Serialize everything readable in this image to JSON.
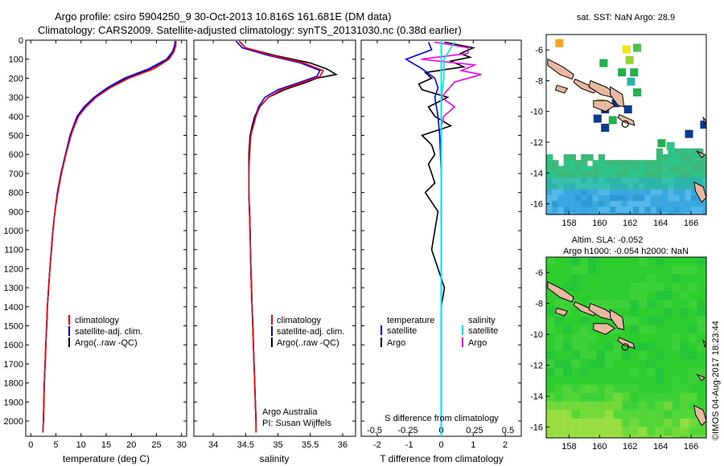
{
  "header": {
    "line1": "Argo profile: csiro 5904250_9 30-Oct-2013 10.816S 161.681E (DM data)",
    "line2": "Climatology: CARS2009. Satellite-adjusted climatology: synTS_20131030.nc (0.38d earlier)"
  },
  "colors": {
    "climatology": "#ff0000",
    "satellite": "#0000ff",
    "argo": "#000000",
    "salinity_satellite": "#00e5ee",
    "salinity_argo": "#ee00ee"
  },
  "legend": {
    "climatology": "climatology",
    "satellite_adj": "satellite-adj. clim.",
    "argo": "Argo(..raw -QC)",
    "temperature": "temperature",
    "salinity": "salinity",
    "satellite": "satellite",
    "argo_short": "Argo"
  },
  "credit": {
    "org": "Argo Australia",
    "pi": "PI: Susan Wijffels",
    "stamp": "©IMOS 04-Aug-2017 18:23:44"
  },
  "chart_data": [
    {
      "type": "line",
      "name": "temperature-profile",
      "xlabel": "temperature (deg C)",
      "ylabel": "",
      "xlim": [
        -1,
        31
      ],
      "ylim": [
        2080,
        0
      ],
      "xticks": [
        "0",
        "5",
        "10",
        "15",
        "20",
        "25",
        "30"
      ],
      "yticks": [
        "0",
        "100",
        "200",
        "300",
        "400",
        "500",
        "600",
        "700",
        "800",
        "900",
        "1000",
        "1100",
        "1200",
        "1300",
        "1400",
        "1500",
        "1600",
        "1700",
        "1800",
        "1900",
        "2000"
      ],
      "series": [
        {
          "name": "climatology",
          "depth": [
            5,
            30,
            60,
            100,
            150,
            200,
            250,
            300,
            350,
            400,
            450,
            500,
            600,
            700,
            800,
            900,
            1000,
            1200,
            1400,
            1600,
            1800,
            2000,
            2060
          ],
          "values": [
            28.9,
            28.8,
            28.5,
            27.5,
            24.5,
            19.5,
            15.8,
            13.0,
            11.0,
            9.5,
            8.7,
            8.0,
            7.0,
            6.1,
            5.4,
            4.8,
            4.4,
            3.8,
            3.3,
            3.0,
            2.7,
            2.5,
            2.4
          ]
        },
        {
          "name": "satellite-adj. clim.",
          "depth": [
            5,
            30,
            60,
            100,
            150,
            200,
            250,
            300,
            350,
            400,
            450,
            500,
            600,
            700,
            800,
            900,
            1000,
            1200,
            1400,
            1600,
            1800,
            2000,
            2060
          ],
          "values": [
            28.7,
            28.6,
            28.2,
            27.0,
            23.5,
            18.6,
            15.2,
            12.6,
            10.6,
            9.2,
            8.5,
            7.8,
            6.9,
            6.0,
            5.3,
            4.8,
            4.4,
            3.8,
            3.3,
            3.0,
            2.7,
            2.5,
            2.4
          ]
        },
        {
          "name": "Argo(..raw -QC)",
          "depth": [
            5,
            30,
            60,
            100,
            150,
            200,
            250,
            300,
            350,
            400,
            450,
            500,
            600,
            700,
            800,
            900,
            1000,
            1200,
            1400,
            1600,
            1800,
            2000
          ],
          "values": [
            28.8,
            28.7,
            28.4,
            27.2,
            23.8,
            18.9,
            15.4,
            12.8,
            10.8,
            9.3,
            8.6,
            7.9,
            6.9,
            6.0,
            5.3,
            4.8,
            4.4,
            3.8,
            3.3,
            3.0,
            2.7,
            2.5
          ]
        }
      ]
    },
    {
      "type": "line",
      "name": "salinity-profile",
      "xlabel": "salinity",
      "xlim": [
        33.7,
        36.2
      ],
      "ylim": [
        2080,
        0
      ],
      "xticks": [
        "34",
        "34.5",
        "35",
        "35.5",
        "36"
      ],
      "series": [
        {
          "name": "climatology",
          "depth": [
            5,
            40,
            80,
            120,
            160,
            190,
            220,
            260,
            300,
            350,
            400,
            450,
            500,
            600,
            700,
            800,
            900,
            1000,
            1200,
            1400,
            1600,
            1800,
            2000,
            2060
          ],
          "values": [
            34.4,
            34.5,
            34.9,
            35.4,
            35.7,
            35.65,
            35.4,
            35.05,
            34.85,
            34.72,
            34.66,
            34.62,
            34.58,
            34.56,
            34.55,
            34.55,
            34.56,
            34.57,
            34.58,
            34.6,
            34.62,
            34.64,
            34.66,
            34.66
          ]
        },
        {
          "name": "satellite-adj. clim.",
          "depth": [
            5,
            40,
            80,
            120,
            160,
            190,
            220,
            260,
            300,
            350,
            400,
            450,
            500,
            600,
            700,
            800,
            900,
            1000,
            1200,
            1400,
            1600,
            1800,
            2000,
            2060
          ],
          "values": [
            34.35,
            34.45,
            34.85,
            35.35,
            35.65,
            35.6,
            35.35,
            35.0,
            34.8,
            34.7,
            34.65,
            34.61,
            34.58,
            34.56,
            34.55,
            34.55,
            34.56,
            34.57,
            34.58,
            34.6,
            34.62,
            34.64,
            34.66,
            34.66
          ]
        },
        {
          "name": "Argo(..raw -QC)",
          "depth": [
            5,
            40,
            80,
            120,
            150,
            170,
            180,
            200,
            220,
            260,
            300,
            350,
            400,
            450,
            500,
            600,
            700,
            800,
            900,
            1000,
            1200,
            1400,
            1600,
            1800,
            2000
          ],
          "values": [
            34.4,
            34.5,
            34.95,
            35.5,
            35.75,
            35.85,
            35.9,
            35.6,
            35.45,
            35.1,
            34.85,
            34.72,
            34.64,
            34.6,
            34.57,
            34.55,
            34.55,
            34.55,
            34.56,
            34.57,
            34.58,
            34.6,
            34.62,
            34.64,
            34.66
          ]
        }
      ]
    },
    {
      "type": "line",
      "name": "difference-profile",
      "xlabel_top": "S difference from climatology",
      "xlabel": "T difference from climatology",
      "xlim": [
        -2.5,
        2.5
      ],
      "ylim": [
        2080,
        0
      ],
      "top_ticks": [
        "-0.5",
        "-0.25",
        "0",
        "0.25",
        "0.5"
      ],
      "top_tick_values": [
        -0.5,
        -0.25,
        0,
        0.25,
        0.5
      ],
      "xticks": [
        "-2",
        "-1",
        "0",
        "1",
        "2"
      ],
      "series": [
        {
          "name": "T satellite",
          "group": "temperature",
          "depth": [
            10,
            50,
            100,
            150,
            200,
            250,
            300,
            400,
            500,
            700,
            1000,
            1500,
            2000,
            2060
          ],
          "values": [
            -0.4,
            -0.3,
            -1.1,
            -0.6,
            -0.2,
            -0.1,
            -0.2,
            -0.1,
            -0.05,
            0,
            0,
            0,
            0,
            0
          ]
        },
        {
          "name": "T Argo",
          "group": "temperature",
          "depth": [
            10,
            40,
            70,
            90,
            110,
            140,
            170,
            200,
            230,
            260,
            300,
            350,
            400,
            450,
            500,
            550,
            600,
            650,
            700,
            750,
            800,
            900,
            1000,
            1100,
            1200,
            1300,
            1400,
            1500,
            1600,
            1800,
            2000
          ],
          "values": [
            0.1,
            1.0,
            0.6,
            0.9,
            0.3,
            0.7,
            -0.5,
            -0.3,
            -0.7,
            -0.6,
            0.2,
            -0.4,
            -0.2,
            0.3,
            -0.6,
            -0.3,
            -0.2,
            -0.4,
            -0.3,
            -0.2,
            -0.5,
            -0.1,
            -0.2,
            -0.3,
            -0.1,
            0.1,
            0.0,
            0.0,
            0.0,
            0.0,
            0.0
          ]
        },
        {
          "name": "S satellite",
          "group": "salinity",
          "depth": [
            10,
            100,
            200,
            300,
            500,
            1000,
            1500,
            2060
          ],
          "values": [
            0.1,
            0.02,
            0.02,
            0,
            0,
            0,
            0,
            0
          ]
        },
        {
          "name": "S Argo",
          "group": "salinity",
          "depth": [
            10,
            40,
            70,
            100,
            130,
            160,
            180,
            220,
            260,
            300,
            350,
            400,
            450,
            500,
            600
          ],
          "values": [
            -0.05,
            0.2,
            0.2,
            -0.15,
            0.25,
            0.15,
            0.3,
            0.1,
            0.05,
            0.0,
            0.1,
            0.02,
            0.0,
            0.0,
            0.0
          ]
        }
      ]
    },
    {
      "type": "heatmap",
      "name": "sst-map",
      "title": "sat. SST: NaN Argo: 28.9",
      "xticks": [
        "158",
        "160",
        "162",
        "164",
        "166"
      ],
      "yticks": [
        "-6",
        "-8",
        "-10",
        "-12",
        "-14",
        "-16"
      ],
      "xlim": [
        156.5,
        167
      ],
      "ylim": [
        -16.7,
        -5
      ]
    },
    {
      "type": "heatmap",
      "name": "sla-map",
      "title_line1": "Altim. SLA: -0.052",
      "title_line2": "Argo h1000: -0.054 h2000: NaN",
      "xticks": [
        "158",
        "160",
        "162",
        "164",
        "166"
      ],
      "yticks": [
        "-6",
        "-8",
        "-10",
        "-12",
        "-14",
        "-16"
      ],
      "xlim": [
        156.5,
        167
      ],
      "ylim": [
        -16.7,
        -5
      ]
    }
  ]
}
